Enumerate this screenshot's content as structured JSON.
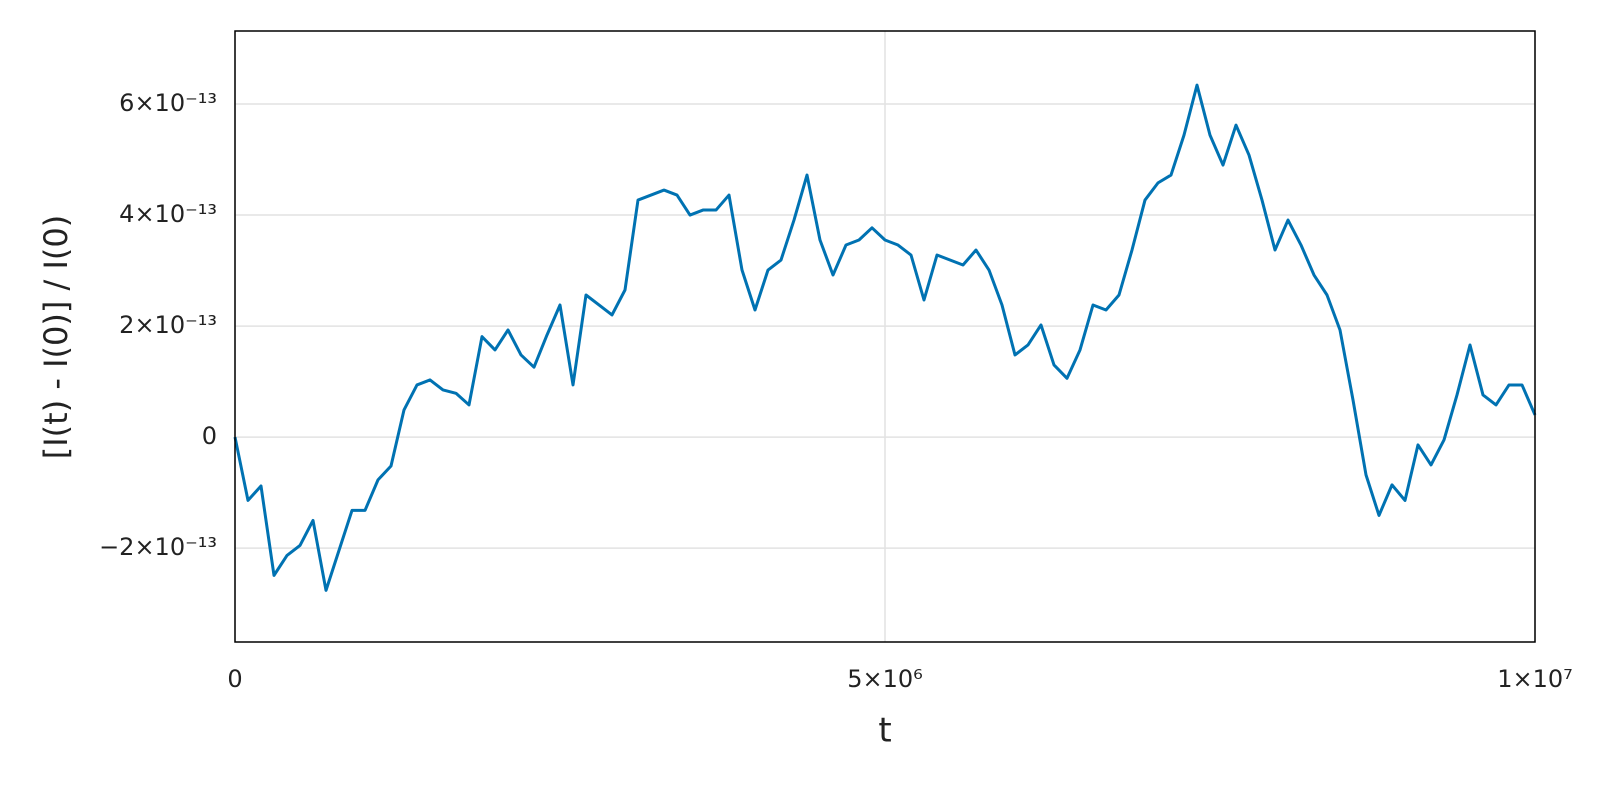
{
  "chart_data": {
    "type": "line",
    "xlabel": "t",
    "ylabel": "[I(t) - I(0)] / I(0)",
    "color": "#0072b2",
    "grid": true,
    "xlim": [
      0,
      10000000
    ],
    "ylim": [
      -3.69e-13,
      7.315e-13
    ],
    "xticks": [
      0,
      {
        "value": 5000000,
        "label": "5×10⁶"
      },
      {
        "value": 10000000,
        "label": "1×10⁷"
      }
    ],
    "yticks": [
      {
        "value": -2e-13,
        "label": "−2×10⁻¹³"
      },
      0,
      {
        "value": 2e-13,
        "label": "2×10⁻¹³"
      },
      {
        "value": 4e-13,
        "label": "4×10⁻¹³"
      },
      {
        "value": 6e-13,
        "label": "6×10⁻¹³"
      }
    ],
    "x": [
      0,
      100000,
      200000,
      300000,
      400000,
      500000,
      600000,
      700000,
      800000,
      900000,
      1000000,
      1100000,
      1200000,
      1300000,
      1400000,
      1500000,
      1600000,
      1700000,
      1800000,
      1900000,
      2000000,
      2100000,
      2200000,
      2300000,
      2400000,
      2500000,
      2600000,
      2700000,
      2800000,
      2900000,
      3000000,
      3100000,
      3200000,
      3300000,
      3400000,
      3500000,
      3600000,
      3700000,
      3800000,
      3900000,
      4000000,
      4100000,
      4200000,
      4300000,
      4400000,
      4500000,
      4600000,
      4700000,
      4800000,
      4900000,
      5000000,
      5100000,
      5200000,
      5300000,
      5400000,
      5500000,
      5600000,
      5700000,
      5800000,
      5900000,
      6000000,
      6100000,
      6200000,
      6300000,
      6400000,
      6500000,
      6600000,
      6700000,
      6800000,
      6900000,
      7000000,
      7100000,
      7200000,
      7300000,
      7400000,
      7500000,
      7600000,
      7700000,
      7800000,
      7900000,
      8000000,
      8100000,
      8200000,
      8300000,
      8400000,
      8500000,
      8600000,
      8700000,
      8800000,
      8900000,
      9000000,
      9100000,
      9200000,
      9300000,
      9400000,
      9500000,
      9600000,
      9700000,
      9800000,
      9900000,
      10000000
    ],
    "values": [
      0,
      -1.14e-13,
      -8.8e-14,
      -2.49e-13,
      -2.13e-13,
      -1.95e-13,
      -1.5e-13,
      -2.76e-13,
      -2.04e-13,
      -1.32e-13,
      -1.32e-13,
      -7.7e-14,
      -5.2e-14,
      4.9e-14,
      9.4e-14,
      1.03e-13,
      8.5e-14,
      7.9e-14,
      5.8e-14,
      1.81e-13,
      1.57e-13,
      1.93e-13,
      1.48e-13,
      1.26e-13,
      1.84e-13,
      2.38e-13,
      9.4e-14,
      2.56e-13,
      2.38e-13,
      2.2e-13,
      2.65e-13,
      4.27e-13,
      4.36e-13,
      4.45e-13,
      4.36e-13,
      4e-13,
      4.09e-13,
      4.09e-13,
      4.36e-13,
      3.01e-13,
      2.29e-13,
      3.01e-13,
      3.19e-13,
      3.91e-13,
      4.72e-13,
      3.55e-13,
      2.92e-13,
      3.46e-13,
      3.55e-13,
      3.77e-13,
      3.55e-13,
      3.46e-13,
      3.28e-13,
      2.47e-13,
      3.28e-13,
      3.19e-13,
      3.1e-13,
      3.37e-13,
      3.01e-13,
      2.38e-13,
      1.48e-13,
      1.66e-13,
      2.02e-13,
      1.3e-13,
      1.06e-13,
      1.57e-13,
      2.38e-13,
      2.29e-13,
      2.56e-13,
      3.37e-13,
      4.27e-13,
      4.58e-13,
      4.72e-13,
      5.44e-13,
      6.34e-13,
      5.44e-13,
      4.9e-13,
      5.62e-13,
      5.08e-13,
      4.27e-13,
      3.37e-13,
      3.91e-13,
      3.46e-13,
      2.92e-13,
      2.56e-13,
      1.93e-13,
      6.7e-14,
      -6.8e-14,
      -1.41e-13,
      -8.6e-14,
      -1.14e-13,
      -1.4e-14,
      -5e-14,
      -5e-15,
      7.6e-14,
      1.66e-13,
      7.6e-14,
      5.8e-14,
      9.4e-14,
      9.4e-14,
      4e-14
    ]
  }
}
